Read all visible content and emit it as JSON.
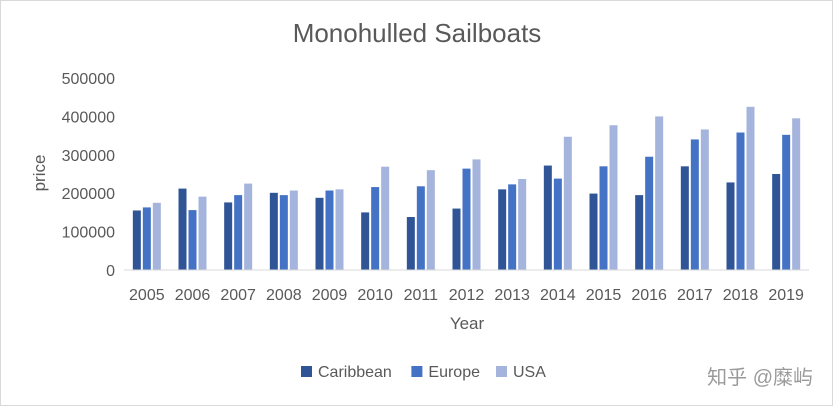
{
  "watermark": "知乎 @糜屿",
  "chart_data": {
    "type": "bar",
    "title": "Monohulled Sailboats",
    "xlabel": "Year",
    "ylabel": "price",
    "ylim": [
      0,
      500000
    ],
    "yticks": [
      "0",
      "100000",
      "200000",
      "300000",
      "400000",
      "500000"
    ],
    "categories": [
      "2005",
      "2006",
      "2007",
      "2008",
      "2009",
      "2010",
      "2011",
      "2012",
      "2013",
      "2014",
      "2015",
      "2016",
      "2017",
      "2018",
      "2019"
    ],
    "series": [
      {
        "name": "Caribbean",
        "color": "#2f5597",
        "values": [
          155000,
          212000,
          176000,
          201000,
          188000,
          150000,
          138000,
          160000,
          210000,
          272000,
          199000,
          195000,
          270000,
          228000,
          250000
        ]
      },
      {
        "name": "Europe",
        "color": "#4472c4",
        "values": [
          163000,
          156000,
          195000,
          195000,
          207000,
          216000,
          218000,
          264000,
          223000,
          238000,
          270000,
          295000,
          340000,
          358000,
          352000
        ]
      },
      {
        "name": "USA",
        "color": "#a5b4dc",
        "values": [
          175000,
          191000,
          225000,
          207000,
          210000,
          269000,
          260000,
          288000,
          237000,
          347000,
          377000,
          400000,
          366000,
          425000,
          395000
        ]
      }
    ],
    "grid": false,
    "legend_position": "bottom"
  }
}
